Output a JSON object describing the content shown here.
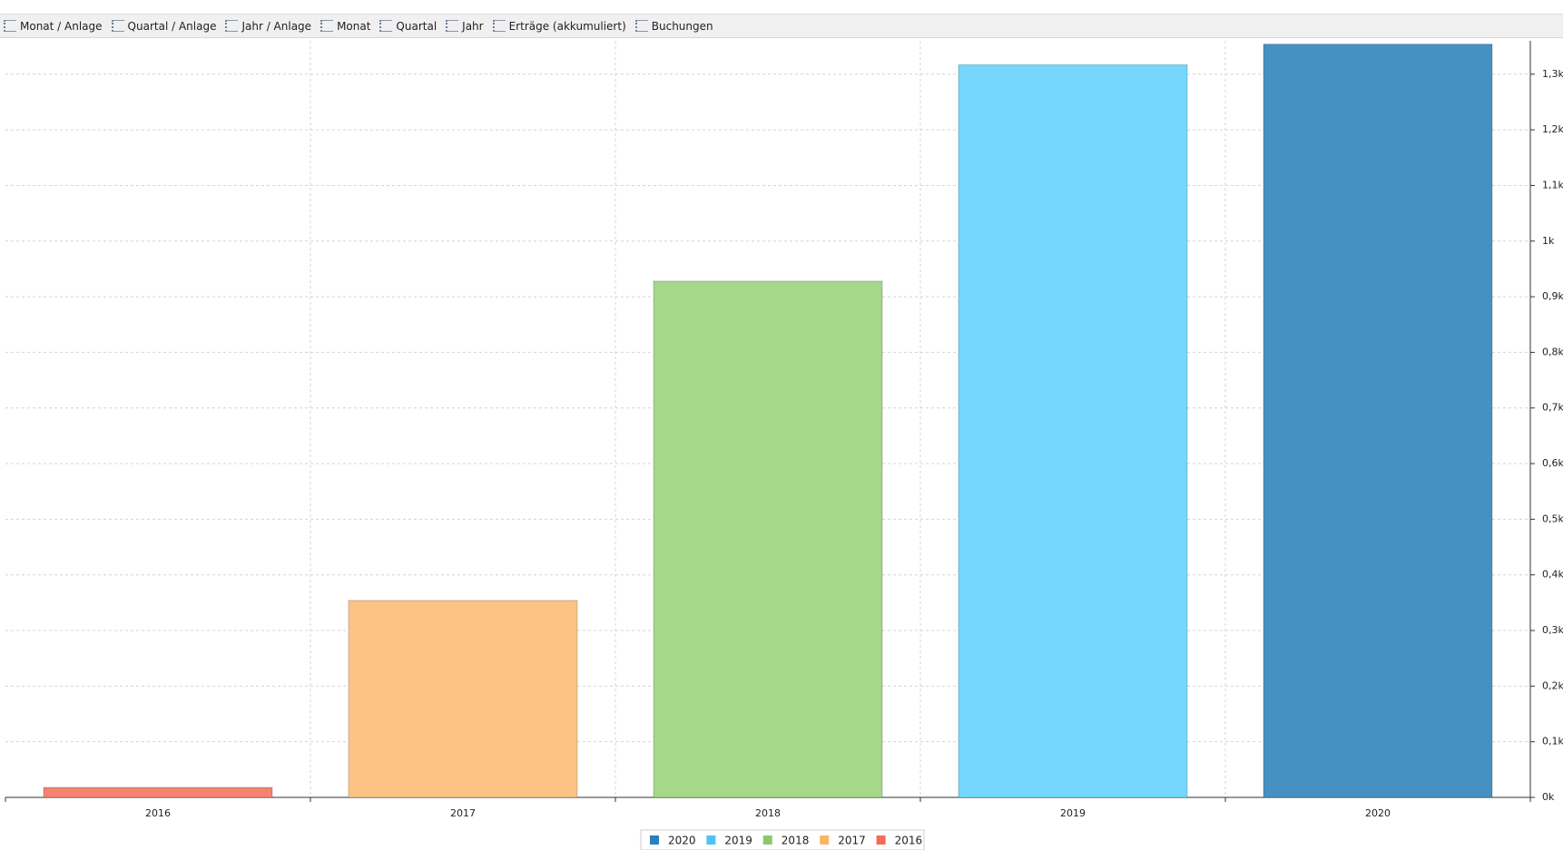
{
  "toolbar": [
    "Monat / Anlage",
    "Quartal / Anlage",
    "Jahr / Anlage",
    "Monat",
    "Quartal",
    "Jahr",
    "Erträge (akkumuliert)",
    "Buchungen"
  ],
  "chart_data": {
    "type": "bar",
    "categories": [
      "2016",
      "2017",
      "2018",
      "2019",
      "2020"
    ],
    "values": [
      18,
      354,
      928,
      1317,
      1354
    ],
    "colors": [
      "#f4836f",
      "#fcc384",
      "#a5d888",
      "#74d7fb",
      "#4691c3"
    ],
    "ylim": [
      0,
      1360
    ],
    "yticks": [
      {
        "value": 0,
        "label": "0k"
      },
      {
        "value": 100,
        "label": "0,1k"
      },
      {
        "value": 200,
        "label": "0,2k"
      },
      {
        "value": 300,
        "label": "0,3k"
      },
      {
        "value": 400,
        "label": "0,4k"
      },
      {
        "value": 500,
        "label": "0,5k"
      },
      {
        "value": 600,
        "label": "0,6k"
      },
      {
        "value": 700,
        "label": "0,7k"
      },
      {
        "value": 800,
        "label": "0,8k"
      },
      {
        "value": 900,
        "label": "0,9k"
      },
      {
        "value": 1000,
        "label": "1k"
      },
      {
        "value": 1100,
        "label": "1,1k"
      },
      {
        "value": 1200,
        "label": "1,2k"
      },
      {
        "value": 1300,
        "label": "1,3k"
      }
    ],
    "grid": true,
    "legend": [
      {
        "label": "2020",
        "color": "#2a7fbf"
      },
      {
        "label": "2019",
        "color": "#4fc4f4"
      },
      {
        "label": "2018",
        "color": "#8cc96a"
      },
      {
        "label": "2017",
        "color": "#fbb560"
      },
      {
        "label": "2016",
        "color": "#f26c56"
      }
    ]
  }
}
